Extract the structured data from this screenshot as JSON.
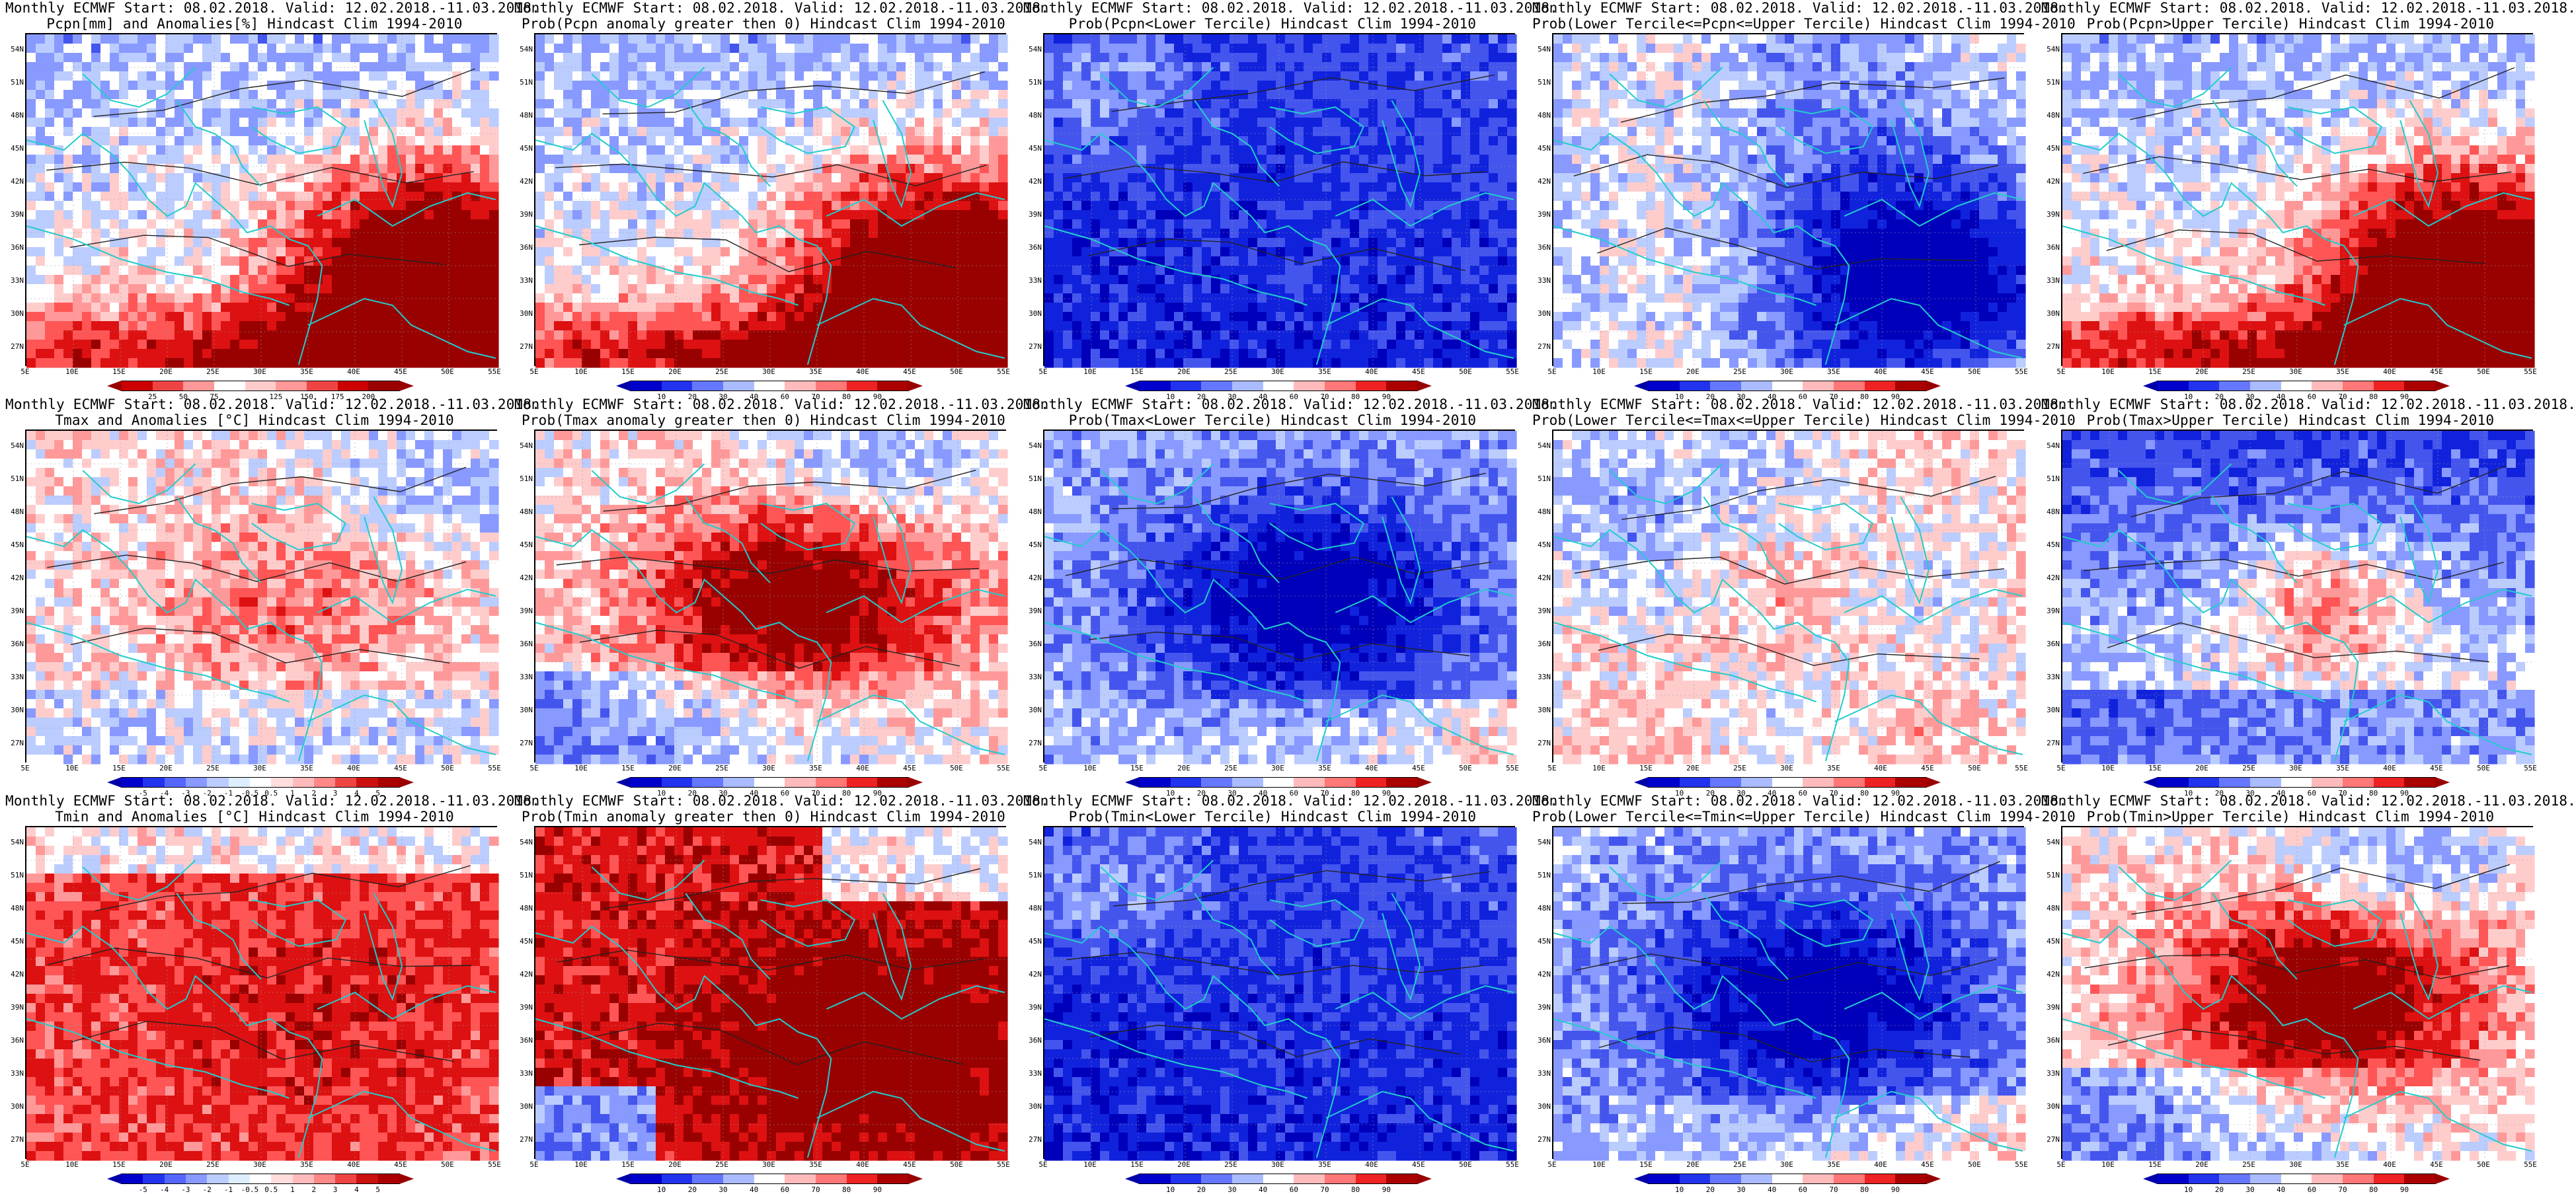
{
  "lon_labels": [
    "5E",
    "10E",
    "15E",
    "20E",
    "25E",
    "30E",
    "35E",
    "40E",
    "45E",
    "50E",
    "55E"
  ],
  "lat_labels": [
    "54N",
    "51N",
    "48N",
    "45N",
    "42N",
    "39N",
    "36N",
    "33N",
    "30N",
    "27N"
  ],
  "panels": [
    {
      "row": 0,
      "col": 0,
      "title1": "Monthly ECMWF Start: 08.02.2018. Valid: 12.02.2018.-11.03.2018.",
      "title2": "Pcpn[mm] and Anomalies[%] Hindcast Clim 1994-2010",
      "pattern": "red-se",
      "cbar": "pcpn_anom"
    },
    {
      "row": 0,
      "col": 1,
      "title1": "Monthly ECMWF Start: 08.02.2018. Valid: 12.02.2018.-11.03.2018.",
      "title2": "Prob(Pcpn anomaly greater then 0) Hindcast Clim 1994-2010",
      "pattern": "red-se",
      "cbar": "prob"
    },
    {
      "row": 0,
      "col": 2,
      "title1": "Monthly ECMWF Start: 08.02.2018. Valid: 12.02.2018.-11.03.2018.",
      "title2": "Prob(Pcpn<Lower Tercile) Hindcast Clim 1994-2010",
      "pattern": "blue-all",
      "cbar": "prob"
    },
    {
      "row": 0,
      "col": 3,
      "title1": "Monthly ECMWF Start: 08.02.2018. Valid: 12.02.2018.-11.03.2018.",
      "title2": "Prob(Lower Tercile<=Pcpn<=Upper Tercile) Hindcast Clim 1994-2010",
      "pattern": "blue-se",
      "cbar": "prob"
    },
    {
      "row": 0,
      "col": 4,
      "title1": "Monthly ECMWF Start: 08.02.2018. Valid: 12.02.2018.-11.03.2018.",
      "title2": "Prob(Pcpn>Upper Tercile) Hindcast Clim 1994-2010",
      "pattern": "red-se",
      "cbar": "prob"
    },
    {
      "row": 1,
      "col": 0,
      "title1": "Monthly ECMWF Start: 08.02.2018. Valid: 12.02.2018.-11.03.2018.",
      "title2": "Tmax and Anomalies [°C] Hindcast Clim 1994-2010",
      "pattern": "light-mix",
      "cbar": "temp_anom"
    },
    {
      "row": 1,
      "col": 1,
      "title1": "Monthly ECMWF Start: 08.02.2018. Valid: 12.02.2018.-11.03.2018.",
      "title2": "Prob(Tmax anomaly greater then 0) Hindcast Clim 1994-2010",
      "pattern": "red-center",
      "cbar": "prob"
    },
    {
      "row": 1,
      "col": 2,
      "title1": "Monthly ECMWF Start: 08.02.2018. Valid: 12.02.2018.-11.03.2018.",
      "title2": "Prob(Tmax<Lower Tercile) Hindcast Clim 1994-2010",
      "pattern": "blue-center",
      "cbar": "prob"
    },
    {
      "row": 1,
      "col": 3,
      "title1": "Monthly ECMWF Start: 08.02.2018. Valid: 12.02.2018.-11.03.2018.",
      "title2": "Prob(Lower Tercile<=Tmax<=Upper Tercile) Hindcast Clim 1994-2010",
      "pattern": "white-mix",
      "cbar": "prob"
    },
    {
      "row": 1,
      "col": 4,
      "title1": "Monthly ECMWF Start: 08.02.2018. Valid: 12.02.2018.-11.03.2018.",
      "title2": "Prob(Tmax>Upper Tercile) Hindcast Clim 1994-2010",
      "pattern": "blue-north",
      "cbar": "prob"
    },
    {
      "row": 2,
      "col": 0,
      "title1": "Monthly ECMWF Start: 08.02.2018. Valid: 12.02.2018.-11.03.2018.",
      "title2": "Tmin and Anomalies [°C] Hindcast Clim 1994-2010",
      "pattern": "pink-all",
      "cbar": "temp_anom"
    },
    {
      "row": 2,
      "col": 1,
      "title1": "Monthly ECMWF Start: 08.02.2018. Valid: 12.02.2018.-11.03.2018.",
      "title2": "Prob(Tmin anomaly greater then 0) Hindcast Clim 1994-2010",
      "pattern": "red-all",
      "cbar": "prob"
    },
    {
      "row": 2,
      "col": 2,
      "title1": "Monthly ECMWF Start: 08.02.2018. Valid: 12.02.2018.-11.03.2018.",
      "title2": "Prob(Tmin<Lower Tercile) Hindcast Clim 1994-2010",
      "pattern": "blue-all",
      "cbar": "prob"
    },
    {
      "row": 2,
      "col": 3,
      "title1": "Monthly ECMWF Start: 08.02.2018. Valid: 12.02.2018.-11.03.2018.",
      "title2": "Prob(Lower Tercile<=Tmin<=Upper Tercile) Hindcast Clim 1994-2010",
      "pattern": "blue-center",
      "cbar": "prob"
    },
    {
      "row": 2,
      "col": 4,
      "title1": "Monthly ECMWF Start: 08.02.2018. Valid: 12.02.2018.-11.03.2018.",
      "title2": "Prob(Tmin>Upper Tercile) Hindcast Clim 1994-2010",
      "pattern": "red-center",
      "cbar": "prob"
    }
  ],
  "colorbars": {
    "pcpn_anom": {
      "labels": [
        "25",
        "50",
        "75",
        "125",
        "150",
        "175",
        "200"
      ],
      "colors": [
        "#cc0000",
        "#ee4444",
        "#ff9999",
        "#ffffff",
        "#ffcccc",
        "#ff9999",
        "#ee4444",
        "#cc0000",
        "#990000"
      ],
      "left_tip": "#990000",
      "right_tip": "#990000"
    },
    "temp_anom": {
      "labels": [
        "-5",
        "-4",
        "-3",
        "-2",
        "-1",
        "-0.5",
        "0.5",
        "1",
        "2",
        "3",
        "4",
        "5"
      ],
      "colors": [
        "#0000cc",
        "#2233ee",
        "#5566ff",
        "#8899ff",
        "#bbccff",
        "#ddeeff",
        "#ffffff",
        "#ffdddd",
        "#ffbbbb",
        "#ff8888",
        "#ee4444",
        "#cc1111",
        "#aa0000"
      ],
      "left_tip": "#0000aa",
      "right_tip": "#990000"
    },
    "prob": {
      "labels": [
        "10",
        "20",
        "30",
        "40",
        "60",
        "70",
        "80",
        "90"
      ],
      "colors": [
        "#0000cc",
        "#2233ee",
        "#6677ff",
        "#aabbff",
        "#ffffff",
        "#ffbbbb",
        "#ff7777",
        "#ee2222",
        "#aa0000"
      ],
      "left_tip": "#0000aa",
      "right_tip": "#990000"
    }
  }
}
